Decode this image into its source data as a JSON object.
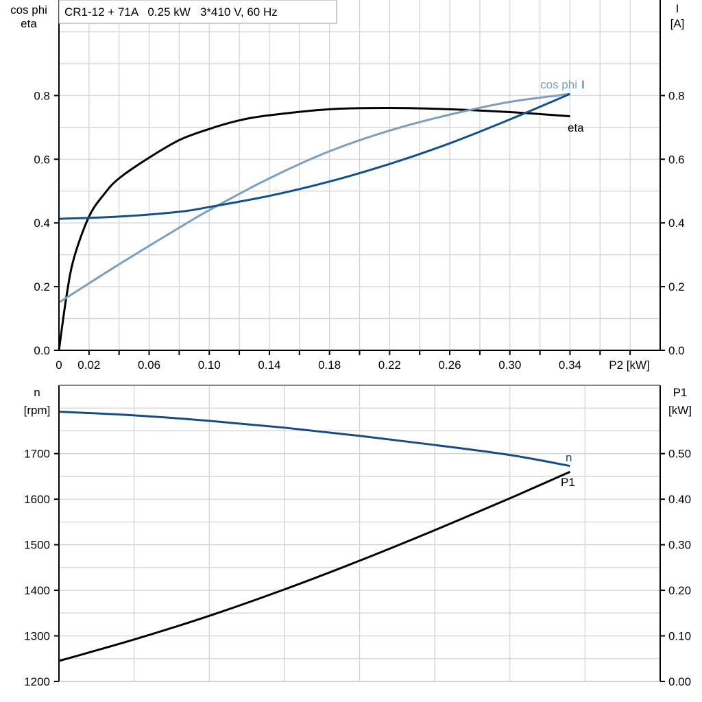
{
  "chart_data": [
    {
      "type": "line",
      "title": "CR1-12 + 71A   0.25 kW   3*410 V, 60 Hz",
      "xlabel": "P2 [kW]",
      "ylabel_left": [
        "cos phi",
        "eta"
      ],
      "ylabel_right": [
        "I",
        "[A]"
      ],
      "xlim": [
        0,
        0.4
      ],
      "ylim": [
        0,
        1.1
      ],
      "x_tick_labels": [
        "0",
        "0.02",
        "0.06",
        "0.10",
        "0.14",
        "0.18",
        "0.22",
        "0.26",
        "0.30",
        "0.34"
      ],
      "x_ticks": [
        0,
        0.02,
        0.06,
        0.1,
        0.14,
        0.18,
        0.22,
        0.26,
        0.3,
        0.34
      ],
      "y_tick_labels_left": [
        "0.0",
        "0.2",
        "0.4",
        "0.6",
        "0.8"
      ],
      "y_tick_labels_right": [
        "0.0",
        "0.2",
        "0.4",
        "0.6",
        "0.8"
      ],
      "y_ticks": [
        0,
        0.2,
        0.4,
        0.6,
        0.8
      ],
      "grid": true,
      "series": [
        {
          "name": "eta",
          "color": "#000000",
          "x": [
            0,
            0.005,
            0.01,
            0.02,
            0.03,
            0.04,
            0.06,
            0.08,
            0.1,
            0.12,
            0.14,
            0.18,
            0.22,
            0.26,
            0.3,
            0.34
          ],
          "y": [
            0,
            0.17,
            0.29,
            0.42,
            0.49,
            0.54,
            0.605,
            0.66,
            0.695,
            0.722,
            0.738,
            0.757,
            0.761,
            0.757,
            0.748,
            0.735
          ]
        },
        {
          "name": "cos phi",
          "color": "#7b9fc2",
          "x": [
            0,
            0.04,
            0.08,
            0.1,
            0.14,
            0.18,
            0.22,
            0.26,
            0.3,
            0.34
          ],
          "y": [
            0.15,
            0.27,
            0.385,
            0.44,
            0.54,
            0.625,
            0.69,
            0.74,
            0.78,
            0.805
          ]
        },
        {
          "name": "I",
          "color": "#134f8a",
          "x": [
            0,
            0.04,
            0.08,
            0.1,
            0.14,
            0.18,
            0.22,
            0.26,
            0.3,
            0.34
          ],
          "y": [
            0.413,
            0.42,
            0.435,
            0.45,
            0.485,
            0.53,
            0.585,
            0.65,
            0.725,
            0.805
          ]
        }
      ]
    },
    {
      "type": "line",
      "ylabel_left": [
        "n",
        "[rpm]"
      ],
      "ylabel_right": [
        "P1",
        "[kW]"
      ],
      "xlim": [
        0,
        0.4
      ],
      "ylim_left": [
        1200,
        1850
      ],
      "ylim_right": [
        0,
        0.65
      ],
      "y_tick_labels_left": [
        "1200",
        "1300",
        "1400",
        "1500",
        "1600",
        "1700"
      ],
      "y_ticks_left": [
        1200,
        1300,
        1400,
        1500,
        1600,
        1700
      ],
      "y_tick_labels_right": [
        "0.00",
        "0.10",
        "0.20",
        "0.30",
        "0.40",
        "0.50"
      ],
      "y_ticks_right": [
        0,
        0.1,
        0.2,
        0.3,
        0.4,
        0.5
      ],
      "grid": true,
      "series": [
        {
          "name": "n",
          "axis": "left",
          "color": "#174b84",
          "x": [
            0,
            0.05,
            0.1,
            0.15,
            0.2,
            0.25,
            0.3,
            0.34
          ],
          "y": [
            1792,
            1784,
            1772,
            1757,
            1739,
            1719,
            1697,
            1673
          ]
        },
        {
          "name": "P1",
          "axis": "right",
          "color": "#000000",
          "x": [
            0,
            0.05,
            0.1,
            0.15,
            0.2,
            0.25,
            0.3,
            0.34
          ],
          "y": [
            0.045,
            0.092,
            0.144,
            0.202,
            0.265,
            0.332,
            0.402,
            0.46
          ]
        }
      ]
    }
  ]
}
